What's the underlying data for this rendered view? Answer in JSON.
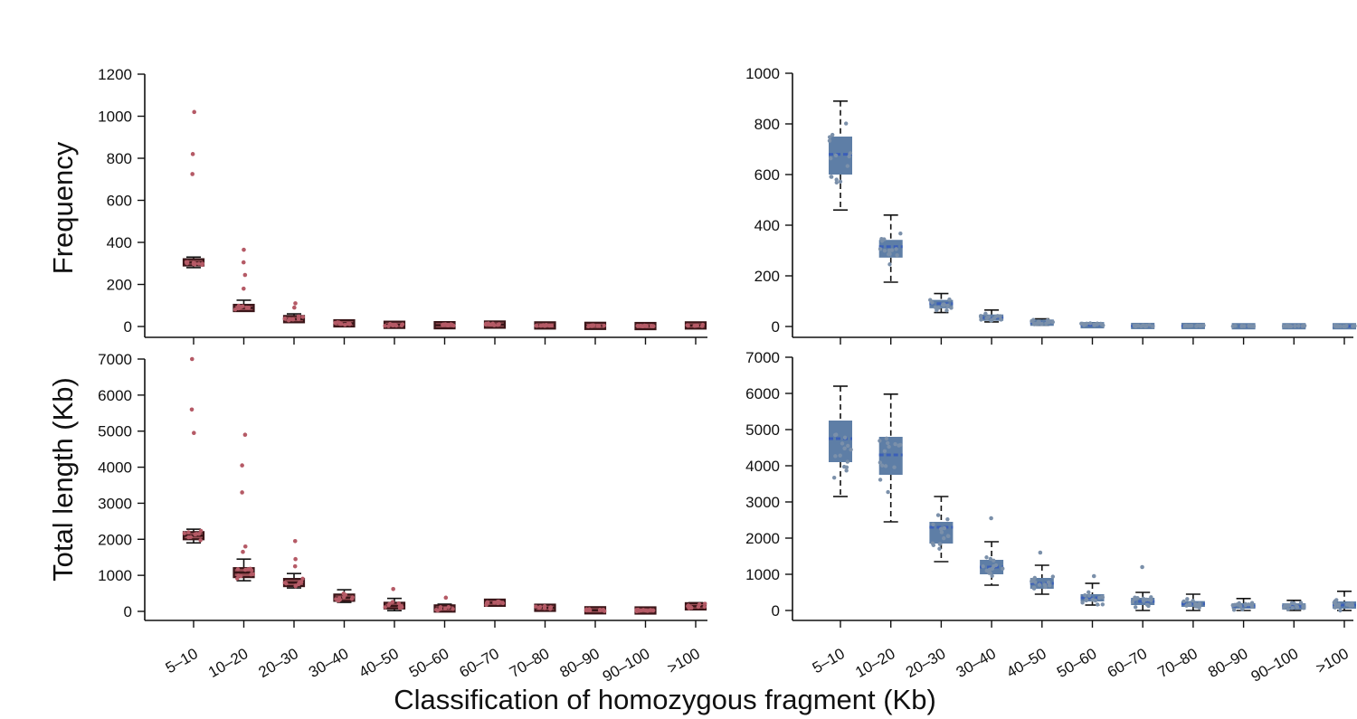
{
  "figure": {
    "xlabel": "Classification of homozygous fragment (Kb)",
    "colors": {
      "red_box": "#9a4f55",
      "red_box_dark": "#3a1518",
      "red_point": "#b55a66",
      "blue_box": "#5e7ea6",
      "blue_median": "#3b5fb8",
      "blue_point": "#7b90aa",
      "axis": "#111111"
    }
  },
  "chart_data": [
    {
      "type": "box",
      "panel": "top-left",
      "ylabel": "Frequency",
      "ylim": [
        0,
        1200
      ],
      "yticks": [
        0,
        200,
        400,
        600,
        800,
        1000,
        1200
      ],
      "categories": [
        "5–10",
        "10–20",
        "20–30",
        "30–40",
        "40–50",
        "50–60",
        "60–70",
        "70–80",
        "80–90",
        "90–100",
        ">100"
      ],
      "show_xticklabels": false,
      "boxes": [
        {
          "min": 280,
          "q1": 290,
          "median": 305,
          "q3": 320,
          "max": 330,
          "outliers": [
            1020,
            820,
            725
          ]
        },
        {
          "min": 75,
          "q1": 78,
          "median": 88,
          "q3": 100,
          "max": 125,
          "outliers": [
            365,
            305,
            245,
            180
          ]
        },
        {
          "min": 20,
          "q1": 25,
          "median": 35,
          "q3": 45,
          "max": 60,
          "outliers": [
            110,
            90
          ]
        },
        {
          "min": 8,
          "q1": 10,
          "median": 15,
          "q3": 20,
          "max": 25,
          "outliers": []
        },
        {
          "min": 2,
          "q1": 4,
          "median": 8,
          "q3": 14,
          "max": 20,
          "outliers": []
        },
        {
          "min": 2,
          "q1": 3,
          "median": 6,
          "q3": 10,
          "max": 14,
          "outliers": []
        },
        {
          "min": 3,
          "q1": 6,
          "median": 9,
          "q3": 14,
          "max": 18,
          "outliers": []
        },
        {
          "min": 1,
          "q1": 3,
          "median": 5,
          "q3": 9,
          "max": 12,
          "outliers": []
        },
        {
          "min": 0,
          "q1": 1,
          "median": 3,
          "q3": 5,
          "max": 8,
          "outliers": []
        },
        {
          "min": 0,
          "q1": 1,
          "median": 2,
          "q3": 4,
          "max": 7,
          "outliers": []
        },
        {
          "min": 1,
          "q1": 3,
          "median": 5,
          "q3": 8,
          "max": 12,
          "outliers": []
        }
      ]
    },
    {
      "type": "box",
      "panel": "top-right",
      "ylabel": "",
      "ylim": [
        0,
        1000
      ],
      "yticks": [
        0,
        200,
        400,
        600,
        800,
        1000
      ],
      "categories": [
        "5–10",
        "10–20",
        "20–30",
        "30–40",
        "40–50",
        "50–60",
        "60–70",
        "70–80",
        "80–90",
        "90–100",
        ">100"
      ],
      "show_xticklabels": false,
      "boxes": [
        {
          "min": 460,
          "q1": 600,
          "median": 680,
          "q3": 750,
          "max": 890,
          "outliers": []
        },
        {
          "min": 175,
          "q1": 272,
          "median": 315,
          "q3": 342,
          "max": 440,
          "outliers": []
        },
        {
          "min": 55,
          "q1": 72,
          "median": 90,
          "q3": 105,
          "max": 130,
          "outliers": []
        },
        {
          "min": 18,
          "q1": 25,
          "median": 35,
          "q3": 45,
          "max": 65,
          "outliers": []
        },
        {
          "min": 5,
          "q1": 10,
          "median": 15,
          "q3": 25,
          "max": 30,
          "outliers": []
        },
        {
          "min": 2,
          "q1": 3,
          "median": 5,
          "q3": 12,
          "max": 15,
          "outliers": []
        },
        {
          "min": 0,
          "q1": 1,
          "median": 2,
          "q3": 5,
          "max": 10,
          "outliers": []
        },
        {
          "min": 0,
          "q1": 1,
          "median": 2,
          "q3": 4,
          "max": 6,
          "outliers": []
        },
        {
          "min": 0,
          "q1": 0,
          "median": 1,
          "q3": 3,
          "max": 5,
          "outliers": []
        },
        {
          "min": 0,
          "q1": 0,
          "median": 1,
          "q3": 3,
          "max": 4,
          "outliers": []
        },
        {
          "min": 0,
          "q1": 0,
          "median": 1,
          "q3": 3,
          "max": 4,
          "outliers": []
        }
      ]
    },
    {
      "type": "box",
      "panel": "bottom-left",
      "ylabel": "Total length (Kb)",
      "ylim": [
        0,
        7000
      ],
      "yticks": [
        0,
        1000,
        2000,
        3000,
        4000,
        5000,
        6000,
        7000
      ],
      "categories": [
        "5–10",
        "10–20",
        "20–30",
        "30–40",
        "40–50",
        "50–60",
        "60–70",
        "70–80",
        "80–90",
        "90–100",
        ">100"
      ],
      "show_xticklabels": true,
      "boxes": [
        {
          "min": 1900,
          "q1": 2000,
          "median": 2100,
          "q3": 2200,
          "max": 2280,
          "outliers": [
            7000,
            5600,
            4950
          ]
        },
        {
          "min": 850,
          "q1": 950,
          "median": 1080,
          "q3": 1200,
          "max": 1450,
          "outliers": [
            4900,
            4050,
            3300,
            1800,
            1650
          ]
        },
        {
          "min": 650,
          "q1": 700,
          "median": 800,
          "q3": 900,
          "max": 1050,
          "outliers": [
            1950,
            1450,
            1250
          ]
        },
        {
          "min": 250,
          "q1": 300,
          "median": 380,
          "q3": 450,
          "max": 600,
          "outliers": []
        },
        {
          "min": 20,
          "q1": 80,
          "median": 150,
          "q3": 240,
          "max": 360,
          "outliers": [
            620
          ]
        },
        {
          "min": 10,
          "q1": 40,
          "median": 80,
          "q3": 130,
          "max": 200,
          "outliers": [
            380
          ]
        },
        {
          "min": 150,
          "q1": 190,
          "median": 240,
          "q3": 290,
          "max": 330,
          "outliers": []
        },
        {
          "min": 30,
          "q1": 60,
          "median": 100,
          "q3": 140,
          "max": 180,
          "outliers": []
        },
        {
          "min": 0,
          "q1": 10,
          "median": 30,
          "q3": 60,
          "max": 90,
          "outliers": []
        },
        {
          "min": 0,
          "q1": 10,
          "median": 25,
          "q3": 50,
          "max": 80,
          "outliers": []
        },
        {
          "min": 70,
          "q1": 100,
          "median": 140,
          "q3": 190,
          "max": 240,
          "outliers": []
        }
      ]
    },
    {
      "type": "box",
      "panel": "bottom-right",
      "ylabel": "",
      "ylim": [
        0,
        7000
      ],
      "yticks": [
        0,
        1000,
        2000,
        3000,
        4000,
        5000,
        6000,
        7000
      ],
      "categories": [
        "5–10",
        "10–20",
        "20–30",
        "30–40",
        "40–50",
        "50–60",
        "60–70",
        "70–80",
        "80–90",
        "90–100",
        ">100"
      ],
      "show_xticklabels": true,
      "boxes": [
        {
          "min": 3150,
          "q1": 4100,
          "median": 4750,
          "q3": 5250,
          "max": 6200,
          "outliers": []
        },
        {
          "min": 2450,
          "q1": 3750,
          "median": 4300,
          "q3": 4800,
          "max": 5980,
          "outliers": []
        },
        {
          "min": 1350,
          "q1": 1850,
          "median": 2300,
          "q3": 2450,
          "max": 3150,
          "outliers": []
        },
        {
          "min": 700,
          "q1": 1000,
          "median": 1200,
          "q3": 1400,
          "max": 1900,
          "outliers": [
            2550
          ]
        },
        {
          "min": 450,
          "q1": 600,
          "median": 750,
          "q3": 900,
          "max": 1250,
          "outliers": [
            1600
          ]
        },
        {
          "min": 150,
          "q1": 250,
          "median": 350,
          "q3": 450,
          "max": 750,
          "outliers": [
            950
          ]
        },
        {
          "min": 0,
          "q1": 150,
          "median": 250,
          "q3": 350,
          "max": 500,
          "outliers": [
            1200
          ]
        },
        {
          "min": 0,
          "q1": 100,
          "median": 180,
          "q3": 260,
          "max": 450,
          "outliers": []
        },
        {
          "min": 0,
          "q1": 50,
          "median": 120,
          "q3": 200,
          "max": 330,
          "outliers": []
        },
        {
          "min": 0,
          "q1": 50,
          "median": 110,
          "q3": 180,
          "max": 280,
          "outliers": []
        },
        {
          "min": 0,
          "q1": 50,
          "median": 150,
          "q3": 250,
          "max": 530,
          "outliers": []
        }
      ]
    }
  ]
}
